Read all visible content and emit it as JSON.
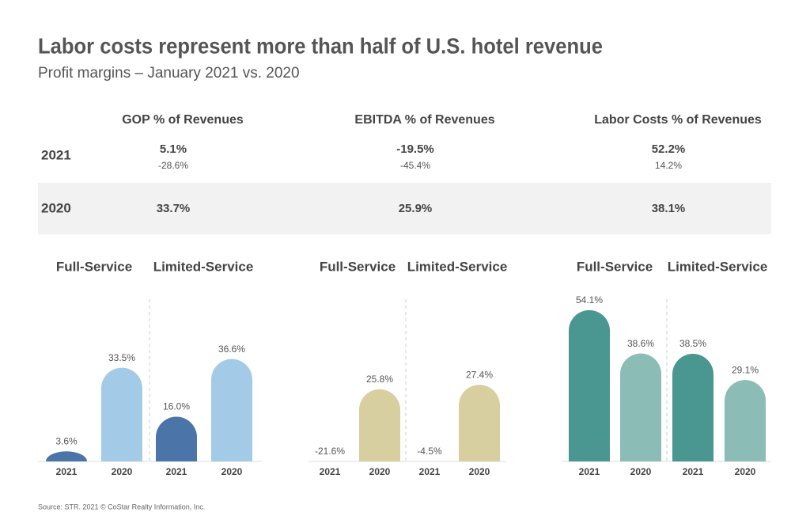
{
  "header": {
    "title": "Labor costs represent more than half of U.S. hotel revenue",
    "subtitle": "Profit margins – January 2021 vs. 2020"
  },
  "table": {
    "columns": [
      "GOP % of Revenues",
      "EBITDA % of Revenues",
      "Labor Costs % of Revenues"
    ],
    "rows": [
      {
        "label": "2021",
        "values": [
          "5.1%",
          "-19.5%",
          "52.2%"
        ],
        "changes": [
          "-28.6%",
          "-45.4%",
          "14.2%"
        ]
      },
      {
        "label": "2020",
        "values": [
          "33.7%",
          "25.9%",
          "38.1%"
        ]
      }
    ]
  },
  "chart_data": [
    {
      "type": "bar",
      "title": "Full-Service",
      "categories": [
        "2021",
        "2020"
      ],
      "values": [
        3.6,
        33.5
      ],
      "value_labels": [
        "3.6%",
        "33.5%"
      ],
      "colors": [
        "#4b74a8",
        "#a3cbe8"
      ],
      "ylim": [
        0,
        60
      ]
    },
    {
      "type": "bar",
      "title": "Limited-Service",
      "categories": [
        "2021",
        "2020"
      ],
      "values": [
        16.0,
        36.6
      ],
      "value_labels": [
        "16.0%",
        "36.6%"
      ],
      "colors": [
        "#4b74a8",
        "#a3cbe8"
      ],
      "ylim": [
        0,
        60
      ]
    },
    {
      "type": "bar",
      "title": "Full-Service",
      "categories": [
        "2021",
        "2020"
      ],
      "values": [
        -21.6,
        25.8
      ],
      "value_labels": [
        "-21.6%",
        "25.8%"
      ],
      "colors": [
        "#b8a870",
        "#d8cfa0"
      ],
      "ylim": [
        0,
        60
      ]
    },
    {
      "type": "bar",
      "title": "Limited-Service",
      "categories": [
        "2021",
        "2020"
      ],
      "values": [
        -4.5,
        27.4
      ],
      "value_labels": [
        "-4.5%",
        "27.4%"
      ],
      "colors": [
        "#b8a870",
        "#d8cfa0"
      ],
      "ylim": [
        0,
        60
      ]
    },
    {
      "type": "bar",
      "title": "Full-Service",
      "categories": [
        "2021",
        "2020"
      ],
      "values": [
        54.1,
        38.6
      ],
      "value_labels": [
        "54.1%",
        "38.6%"
      ],
      "colors": [
        "#4a9690",
        "#8bbcb5"
      ],
      "ylim": [
        0,
        60
      ]
    },
    {
      "type": "bar",
      "title": "Limited-Service",
      "categories": [
        "2021",
        "2020"
      ],
      "values": [
        38.5,
        29.1
      ],
      "value_labels": [
        "38.5%",
        "29.1%"
      ],
      "colors": [
        "#4a9690",
        "#8bbcb5"
      ],
      "ylim": [
        0,
        60
      ]
    }
  ],
  "footer": {
    "source": "Source: STR. 2021 © CoStar Realty Information, Inc."
  }
}
